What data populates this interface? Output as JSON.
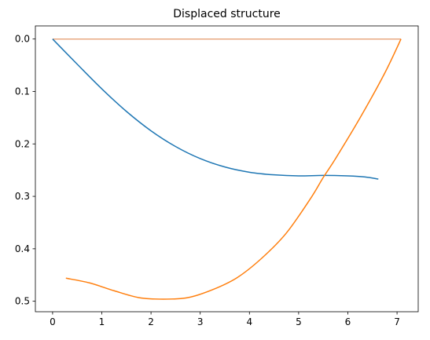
{
  "chart_data": {
    "type": "line",
    "title": "Displaced structure",
    "xlabel": "",
    "ylabel": "",
    "xlim": [
      -0.35,
      7.43
    ],
    "ylim": [
      0.52,
      -0.025
    ],
    "y_inverted": true,
    "grid": false,
    "legend": "none",
    "x_ticks": [
      "0",
      "1",
      "2",
      "3",
      "4",
      "5",
      "6",
      "7"
    ],
    "y_ticks": [
      "0.0",
      "0.1",
      "0.2",
      "0.3",
      "0.4",
      "0.5"
    ],
    "series": [
      {
        "color": "#e8a880",
        "x": [
          0,
          7.08
        ],
        "y": [
          0,
          0
        ]
      },
      {
        "color": "#1f77b4",
        "x": [
          0,
          0.5,
          1,
          1.5,
          2,
          2.5,
          3,
          3.5,
          4,
          4.5,
          5,
          5.5,
          6,
          6.35,
          6.62
        ],
        "y": [
          0,
          0.048,
          0.095,
          0.138,
          0.175,
          0.205,
          0.228,
          0.244,
          0.254,
          0.259,
          0.261,
          0.26,
          0.261,
          0.263,
          0.267
        ]
      },
      {
        "color": "#ff7f0e",
        "x": [
          0.27,
          0.75,
          1.25,
          1.75,
          2.25,
          2.75,
          3.25,
          3.75,
          4.25,
          4.75,
          5.25,
          5.5,
          5.75,
          6.25,
          6.75,
          7.08
        ],
        "y": [
          0.456,
          0.465,
          0.48,
          0.493,
          0.496,
          0.493,
          0.478,
          0.455,
          0.418,
          0.37,
          0.303,
          0.264,
          0.228,
          0.15,
          0.065,
          0.0
        ]
      }
    ]
  }
}
